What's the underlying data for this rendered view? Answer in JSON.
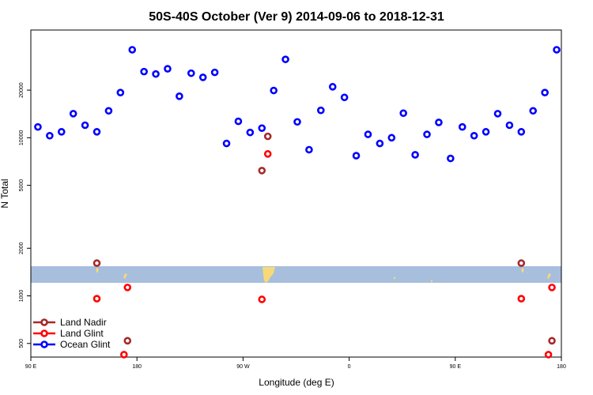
{
  "chart_data": {
    "type": "scatter",
    "title": "50S-40S October (Ver 9)   2014-09-06 to 2018-12-31",
    "xlabel": "Longitude (deg E)",
    "ylabel": "N Total",
    "x_unrolled_range": [
      90,
      540
    ],
    "y_scale": "log",
    "ylim": [
      410,
      48000
    ],
    "x_ticks": [
      {
        "value": 90,
        "label": "90 E"
      },
      {
        "value": 180,
        "label": "180"
      },
      {
        "value": 270,
        "label": "90 W"
      },
      {
        "value": 360,
        "label": "0"
      },
      {
        "value": 450,
        "label": "90 E"
      },
      {
        "value": 540,
        "label": "180"
      }
    ],
    "y_ticks": [
      500,
      1000,
      2000,
      5000,
      10000,
      20000
    ],
    "grid": false,
    "legend_position": "bottom-left",
    "legend": [
      {
        "name": "Land Nadir",
        "color": "#a52a2a"
      },
      {
        "name": "Land Glint",
        "color": "#ff0000"
      },
      {
        "name": "Ocean Glint",
        "color": "#0000ff"
      }
    ],
    "map_strip": {
      "lat_range": "50S-40S",
      "ocean_color": "#a7bedc",
      "land_color": "#f7d97a"
    },
    "series": [
      {
        "name": "Ocean Glint",
        "color": "#0000ff",
        "points": [
          [
            96,
            11700
          ],
          [
            106,
            10300
          ],
          [
            116,
            10900
          ],
          [
            126,
            14200
          ],
          [
            136,
            12000
          ],
          [
            146,
            10900
          ],
          [
            156,
            14800
          ],
          [
            166,
            19300
          ],
          [
            176,
            36000
          ],
          [
            186,
            26200
          ],
          [
            196,
            25300
          ],
          [
            206,
            27300
          ],
          [
            216,
            18300
          ],
          [
            226,
            25600
          ],
          [
            236,
            24100
          ],
          [
            246,
            25900
          ],
          [
            256,
            9200
          ],
          [
            266,
            12700
          ],
          [
            276,
            10800
          ],
          [
            286,
            11500
          ],
          [
            296,
            19900
          ],
          [
            306,
            31300
          ],
          [
            316,
            12600
          ],
          [
            326,
            8400
          ],
          [
            336,
            14900
          ],
          [
            346,
            21000
          ],
          [
            356,
            18000
          ],
          [
            366,
            7700
          ],
          [
            376,
            10500
          ],
          [
            386,
            9200
          ],
          [
            396,
            10000
          ],
          [
            406,
            14300
          ],
          [
            416,
            7800
          ],
          [
            426,
            10500
          ],
          [
            436,
            12500
          ],
          [
            446,
            7400
          ],
          [
            456,
            11700
          ],
          [
            466,
            10300
          ],
          [
            476,
            10900
          ],
          [
            486,
            14200
          ],
          [
            496,
            12000
          ],
          [
            506,
            10900
          ],
          [
            516,
            14800
          ],
          [
            526,
            19300
          ],
          [
            536,
            36000
          ]
        ]
      },
      {
        "name": "Land Nadir",
        "color": "#a52a2a",
        "points": [
          [
            146,
            1610
          ],
          [
            172,
            520
          ],
          [
            286,
            6200
          ],
          [
            291,
            10200
          ],
          [
            506,
            1610
          ],
          [
            532,
            520
          ]
        ]
      },
      {
        "name": "Land Glint",
        "color": "#ff0000",
        "points": [
          [
            146,
            960
          ],
          [
            169,
            425
          ],
          [
            172,
            1130
          ],
          [
            286,
            950
          ],
          [
            291,
            7900
          ],
          [
            506,
            960
          ],
          [
            529,
            425
          ],
          [
            532,
            1130
          ]
        ]
      }
    ]
  }
}
